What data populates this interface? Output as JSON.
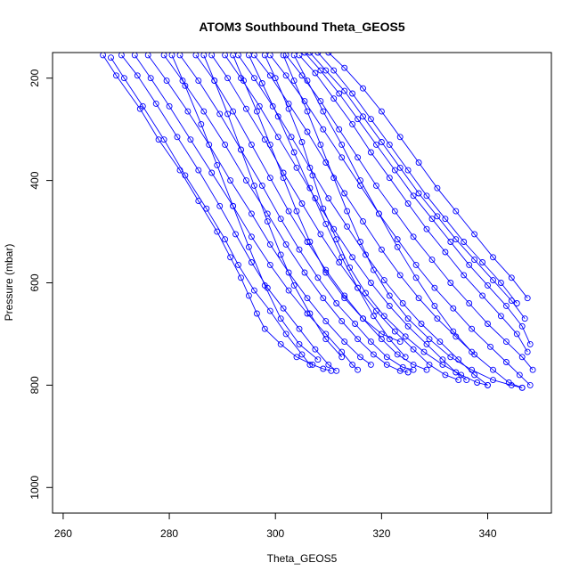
{
  "chart_data": {
    "type": "line",
    "title": "ATOM3 Southbound Theta_GEOS5",
    "xlabel": "Theta_GEOS5",
    "ylabel": "Pressure (mbar)",
    "xlim": [
      258,
      352
    ],
    "ylim": [
      1050,
      150
    ],
    "y_reversed": true,
    "x_ticks": [
      260,
      280,
      300,
      320,
      340
    ],
    "y_ticks": [
      200,
      400,
      600,
      800,
      1000
    ],
    "grid": false,
    "legend": "none",
    "color": "#0000ff",
    "markers": "open-circles",
    "series": [
      {
        "x": [
          267.5,
          270.0,
          274.5,
          278.0,
          282.0,
          285.5,
          289.0,
          291.5,
          293.5,
          295.0,
          296.5,
          298.0,
          301.0,
          304.0,
          307.0,
          309.0,
          310.5
        ],
        "y": [
          155,
          195,
          260,
          320,
          380,
          440,
          500,
          550,
          590,
          625,
          660,
          690,
          720,
          745,
          760,
          768,
          772
        ]
      },
      {
        "x": [
          269.0,
          271.5,
          275.0,
          279.0,
          283.0,
          287.0,
          290.5,
          293.0,
          296.0,
          299.0,
          302.0,
          305.0,
          306.5
        ],
        "y": [
          160,
          200,
          255,
          320,
          390,
          455,
          515,
          565,
          615,
          655,
          700,
          740,
          760
        ]
      },
      {
        "x": [
          271.0,
          274.0,
          277.5,
          281.5,
          285.5,
          289.5,
          292.5,
          295.5,
          298.5,
          301.5,
          304.5,
          307.5,
          310.0,
          311.5
        ],
        "y": [
          155,
          195,
          250,
          315,
          380,
          450,
          505,
          560,
          610,
          650,
          690,
          730,
          760,
          772
        ]
      },
      {
        "x": [
          273.5,
          276.5,
          280.0,
          284.0,
          288.0,
          292.0,
          295.5,
          299.0,
          302.5,
          306.0,
          309.5,
          312.5,
          314.5,
          315.5
        ],
        "y": [
          155,
          200,
          255,
          320,
          385,
          450,
          510,
          565,
          615,
          660,
          700,
          735,
          760,
          770
        ]
      },
      {
        "x": [
          276.0,
          279.5,
          283.5,
          287.5,
          291.5,
          295.5,
          299.0,
          302.5,
          306.0,
          309.5,
          313.0,
          316.0,
          318.0
        ],
        "y": [
          155,
          205,
          265,
          330,
          400,
          465,
          525,
          580,
          630,
          675,
          715,
          745,
          760
        ]
      },
      {
        "x": [
          279.0,
          282.5,
          286.5,
          290.5,
          294.5,
          298.5,
          302.0,
          305.5,
          309.0,
          312.5,
          315.5,
          318.5,
          321.0,
          323.5,
          325.0
        ],
        "y": [
          155,
          205,
          265,
          330,
          400,
          465,
          525,
          580,
          630,
          675,
          710,
          740,
          760,
          772,
          775
        ]
      },
      {
        "x": [
          282.0,
          285.5,
          289.5,
          293.5,
          297.5,
          301.0,
          304.5,
          308.0,
          311.5,
          315.0,
          318.0,
          321.0,
          324.0,
          326.0
        ],
        "y": [
          155,
          205,
          270,
          340,
          410,
          475,
          535,
          590,
          640,
          680,
          715,
          745,
          765,
          770
        ]
      },
      {
        "x": [
          285.0,
          288.5,
          292.0,
          295.5,
          299.0,
          302.5,
          306.0,
          309.5,
          313.0,
          316.5,
          320.0,
          323.0,
          326.0,
          328.5
        ],
        "y": [
          155,
          205,
          265,
          330,
          395,
          460,
          520,
          575,
          625,
          670,
          710,
          740,
          760,
          770
        ]
      },
      {
        "x": [
          288.0,
          291.0,
          294.5,
          298.0,
          301.5,
          305.0,
          308.5,
          312.0,
          315.5,
          319.0,
          322.5,
          326.0,
          329.0,
          332.0,
          334.5
        ],
        "y": [
          155,
          200,
          260,
          320,
          385,
          445,
          505,
          560,
          610,
          655,
          695,
          730,
          760,
          780,
          790
        ]
      },
      {
        "x": [
          290.5,
          293.5,
          297.0,
          300.5,
          304.0,
          307.5,
          311.0,
          314.5,
          318.0,
          321.5,
          325.0,
          328.5,
          331.5,
          334.0,
          336.0
        ],
        "y": [
          155,
          200,
          255,
          315,
          375,
          435,
          495,
          550,
          600,
          645,
          685,
          720,
          750,
          775,
          790
        ]
      },
      {
        "x": [
          293.0,
          296.0,
          299.5,
          303.0,
          306.5,
          310.0,
          313.5,
          317.0,
          320.5,
          324.0,
          327.5,
          331.0,
          334.5,
          337.5,
          340.0
        ],
        "y": [
          155,
          200,
          255,
          315,
          375,
          435,
          490,
          545,
          595,
          640,
          680,
          715,
          750,
          780,
          800
        ]
      },
      {
        "x": [
          296.0,
          299.0,
          302.5,
          306.0,
          309.5,
          313.0,
          316.5,
          320.0,
          323.5,
          327.0,
          330.5,
          334.0,
          337.5,
          341.0,
          344.0,
          346.5
        ],
        "y": [
          155,
          195,
          250,
          305,
          365,
          425,
          480,
          535,
          585,
          630,
          670,
          705,
          740,
          770,
          795,
          805
        ]
      },
      {
        "x": [
          299.0,
          302.0,
          305.5,
          309.0,
          312.5,
          316.0,
          319.5,
          323.0,
          326.5,
          330.0,
          333.5,
          337.0,
          340.5,
          343.5,
          346.0,
          348.0
        ],
        "y": [
          155,
          195,
          245,
          300,
          355,
          410,
          465,
          515,
          565,
          610,
          650,
          690,
          725,
          755,
          780,
          800
        ]
      },
      {
        "x": [
          302.0,
          305.0,
          308.5,
          312.0,
          315.5,
          319.0,
          322.5,
          326.0,
          329.5,
          333.0,
          336.5,
          340.0,
          343.5,
          346.5,
          348.5
        ],
        "y": [
          155,
          195,
          245,
          300,
          355,
          410,
          460,
          510,
          555,
          600,
          640,
          680,
          715,
          745,
          770
        ]
      },
      {
        "x": [
          304.5,
          307.5,
          311.0,
          314.5,
          318.0,
          321.5,
          325.0,
          328.5,
          332.0,
          335.5,
          339.0,
          342.5,
          345.5,
          347.5
        ],
        "y": [
          155,
          190,
          240,
          290,
          345,
          395,
          445,
          495,
          540,
          585,
          625,
          665,
          700,
          735
        ]
      },
      {
        "x": [
          305.5,
          308.5,
          312.0,
          315.5,
          319.0,
          322.5,
          326.0,
          329.5,
          333.0,
          336.5,
          340.0,
          343.5,
          346.5,
          348.0
        ],
        "y": [
          150,
          185,
          230,
          280,
          330,
          380,
          430,
          475,
          520,
          565,
          605,
          645,
          685,
          720
        ]
      },
      {
        "x": [
          306.5,
          309.5,
          313.0,
          316.5,
          320.0,
          323.5,
          327.0,
          330.5,
          334.0,
          337.5,
          341.0,
          344.5,
          347.0
        ],
        "y": [
          150,
          185,
          225,
          275,
          325,
          375,
          425,
          470,
          515,
          555,
          595,
          635,
          670
        ]
      },
      {
        "x": [
          308.0,
          311.0,
          314.5,
          318.0,
          321.5,
          325.0,
          328.5,
          332.0,
          335.5,
          339.0,
          342.5,
          345.5
        ],
        "y": [
          150,
          185,
          230,
          280,
          330,
          380,
          430,
          475,
          520,
          560,
          600,
          640
        ]
      },
      {
        "x": [
          298.0,
          300.0,
          302.5,
          305.0,
          307.0,
          309.0,
          311.5,
          314.0,
          317.0,
          320.5,
          324.5,
          328.0,
          331.5,
          335.0,
          338.0,
          340.0
        ],
        "y": [
          155,
          200,
          260,
          325,
          390,
          455,
          515,
          570,
          620,
          665,
          705,
          735,
          760,
          780,
          795,
          800
        ]
      },
      {
        "x": [
          301.5,
          303.5,
          306.0,
          308.5,
          311.0,
          313.5,
          316.0,
          318.5,
          321.5,
          325.0,
          329.0,
          333.0,
          337.0,
          341.0,
          344.5,
          346.5
        ],
        "y": [
          155,
          205,
          265,
          330,
          395,
          460,
          520,
          575,
          625,
          670,
          710,
          745,
          770,
          790,
          800,
          805
        ]
      },
      {
        "x": [
          292.0,
          294.0,
          296.5,
          299.0,
          301.5,
          304.0,
          306.5,
          309.5,
          313.0,
          316.5,
          320.0,
          323.5
        ],
        "y": [
          155,
          205,
          265,
          330,
          395,
          460,
          520,
          580,
          630,
          670,
          700,
          715
        ]
      },
      {
        "x": [
          286.5,
          288.5,
          291.0,
          293.5,
          296.0,
          298.5,
          301.0,
          303.5,
          306.5,
          309.5,
          312.5
        ],
        "y": [
          155,
          205,
          270,
          340,
          410,
          480,
          545,
          605,
          660,
          710,
          745
        ]
      },
      {
        "x": [
          280.5,
          283.0,
          286.0,
          289.0,
          292.0,
          295.0,
          298.0,
          301.0,
          304.5,
          308.0
        ],
        "y": [
          155,
          215,
          290,
          370,
          450,
          530,
          605,
          670,
          720,
          750
        ]
      },
      {
        "x": [
          310.0,
          313.0,
          316.5,
          320.0,
          323.5,
          327.0,
          330.5,
          334.0,
          337.5,
          341.0,
          344.5,
          347.5
        ],
        "y": [
          150,
          180,
          220,
          265,
          315,
          365,
          415,
          460,
          505,
          550,
          590,
          630
        ]
      },
      {
        "x": [
          303.5,
          306.0,
          309.0,
          312.5,
          316.0,
          319.5,
          323.0,
          326.5,
          330.0,
          333.5,
          337.0
        ],
        "y": [
          155,
          205,
          265,
          330,
          400,
          465,
          530,
          590,
          645,
          695,
          735
        ]
      },
      {
        "x": [
          295.0,
          297.5,
          300.5,
          303.5,
          306.5,
          309.5,
          312.5,
          315.5,
          318.5,
          321.5,
          324.5
        ],
        "y": [
          155,
          210,
          275,
          345,
          415,
          485,
          550,
          610,
          665,
          710,
          745
        ]
      }
    ]
  }
}
